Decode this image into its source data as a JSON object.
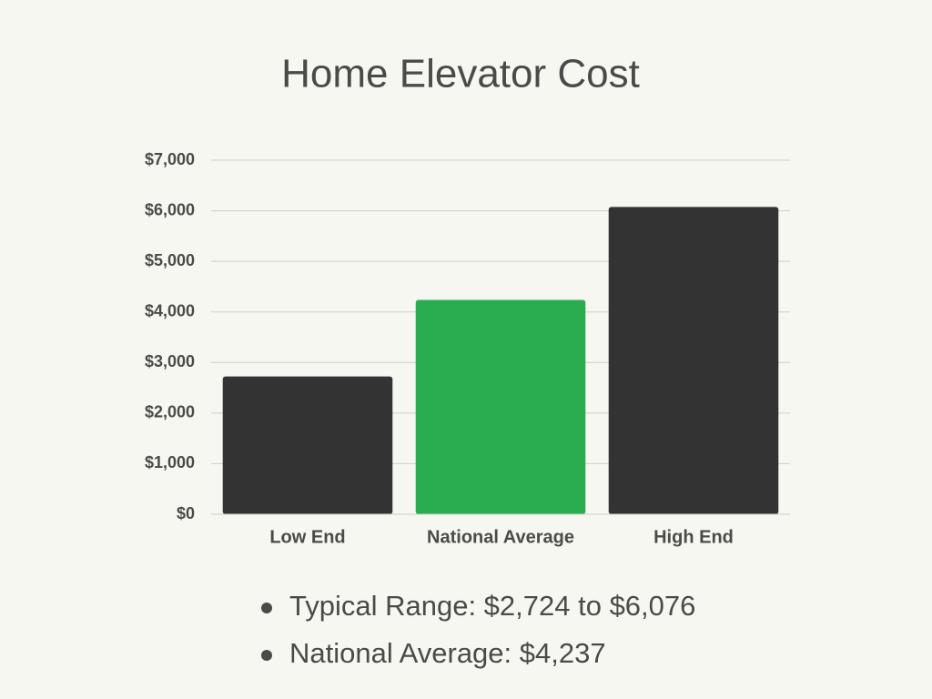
{
  "chart_data": {
    "type": "bar",
    "title": "Home Elevator Cost",
    "categories": [
      "Low End",
      "National Average",
      "High End"
    ],
    "values": [
      2724,
      4237,
      6076
    ],
    "colors": [
      "#333333",
      "#2aad51",
      "#333333"
    ],
    "ylim": [
      0,
      7000
    ],
    "yticks": [
      {
        "value": 0,
        "label": "$0"
      },
      {
        "value": 1000,
        "label": "$1,000"
      },
      {
        "value": 2000,
        "label": "$2,000"
      },
      {
        "value": 3000,
        "label": "$3,000"
      },
      {
        "value": 4000,
        "label": "$4,000"
      },
      {
        "value": 5000,
        "label": "$5,000"
      },
      {
        "value": 6000,
        "label": "$6,000"
      },
      {
        "value": 7000,
        "label": "$7,000"
      }
    ],
    "grid": true,
    "notes": [
      "Typical Range: $2,724 to $6,076",
      "National Average: $4,237"
    ]
  }
}
